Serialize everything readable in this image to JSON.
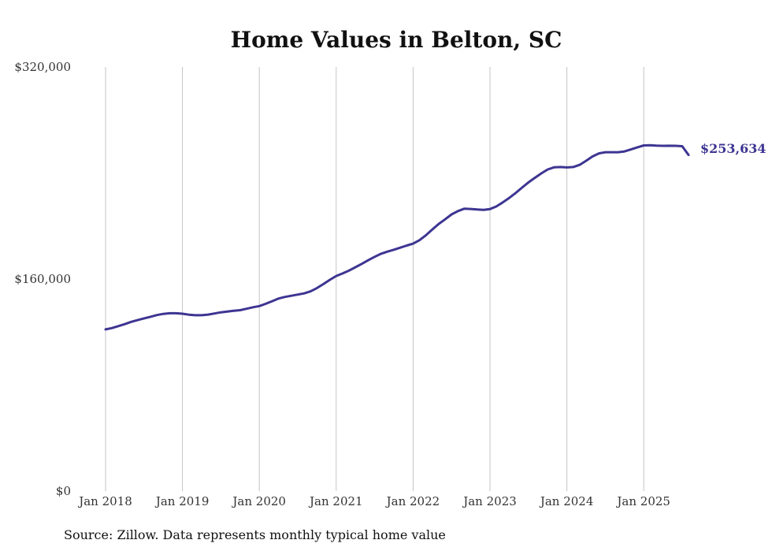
{
  "chart_data": {
    "type": "line",
    "title": "Home Values in Belton, SC",
    "xlabel": "",
    "ylabel": "",
    "ylim": [
      0,
      320000
    ],
    "y_ticks": [
      "$320,000",
      "$160,000",
      "$0"
    ],
    "y_tick_values": [
      320000,
      160000,
      0
    ],
    "x_ticks": [
      "Jan 2018",
      "Jan 2019",
      "Jan 2020",
      "Jan 2021",
      "Jan 2022",
      "Jan 2023",
      "Jan 2024",
      "Jan 2025"
    ],
    "x_tick_values": [
      "2018-01",
      "2019-01",
      "2020-01",
      "2021-01",
      "2022-01",
      "2023-01",
      "2024-01",
      "2025-01"
    ],
    "grid": "vertical",
    "line_color": "#3d3592",
    "end_label": "$253,634",
    "series": [
      {
        "x": [
          "2018-01",
          "2018-02",
          "2018-03",
          "2018-04",
          "2018-05",
          "2018-06",
          "2018-07",
          "2018-08",
          "2018-09",
          "2018-10",
          "2018-11",
          "2018-12",
          "2019-01",
          "2019-02",
          "2019-03",
          "2019-04",
          "2019-05",
          "2019-06",
          "2019-07",
          "2019-08",
          "2019-09",
          "2019-10",
          "2019-11",
          "2019-12",
          "2020-01",
          "2020-02",
          "2020-03",
          "2020-04",
          "2020-05",
          "2020-06",
          "2020-07",
          "2020-08",
          "2020-09",
          "2020-10",
          "2020-11",
          "2020-12",
          "2021-01",
          "2021-02",
          "2021-03",
          "2021-04",
          "2021-05",
          "2021-06",
          "2021-07",
          "2021-08",
          "2021-09",
          "2021-10",
          "2021-11",
          "2021-12",
          "2022-01",
          "2022-02",
          "2022-03",
          "2022-04",
          "2022-05",
          "2022-06",
          "2022-07",
          "2022-08",
          "2022-09",
          "2022-10",
          "2022-11",
          "2022-12",
          "2023-01",
          "2023-02",
          "2023-03",
          "2023-04",
          "2023-05",
          "2023-06",
          "2023-07",
          "2023-08",
          "2023-09",
          "2023-10",
          "2023-11",
          "2023-12",
          "2024-01",
          "2024-02",
          "2024-03",
          "2024-04",
          "2024-05",
          "2024-06",
          "2024-07",
          "2024-08",
          "2024-09",
          "2024-10",
          "2024-11",
          "2024-12",
          "2025-01",
          "2025-02",
          "2025-03",
          "2025-04",
          "2025-05",
          "2025-06",
          "2025-07",
          "2025-08"
        ],
        "values": [
          122000,
          123000,
          124500,
          126000,
          127700,
          129000,
          130300,
          131500,
          132800,
          133700,
          134200,
          134200,
          133800,
          133100,
          132700,
          132700,
          133200,
          134000,
          134900,
          135500,
          136100,
          136500,
          137600,
          138700,
          139600,
          141300,
          143300,
          145300,
          146500,
          147400,
          148300,
          149200,
          150700,
          153200,
          156200,
          159400,
          162300,
          164200,
          166400,
          168900,
          171500,
          174200,
          176800,
          179100,
          180700,
          182100,
          183700,
          185300,
          186700,
          189300,
          193100,
          197400,
          201600,
          205100,
          208800,
          211300,
          213100,
          212900,
          212500,
          212200,
          212800,
          214800,
          217900,
          221200,
          224900,
          229000,
          232900,
          236400,
          239700,
          242700,
          244300,
          244500,
          244200,
          244500,
          246200,
          249200,
          252500,
          254800,
          255700,
          255700,
          255700,
          256300,
          257800,
          259400,
          260800,
          261000,
          260700,
          260500,
          260600,
          260500,
          260200,
          253634
        ]
      }
    ],
    "source": "Source: Zillow. Data represents monthly typical home value"
  }
}
